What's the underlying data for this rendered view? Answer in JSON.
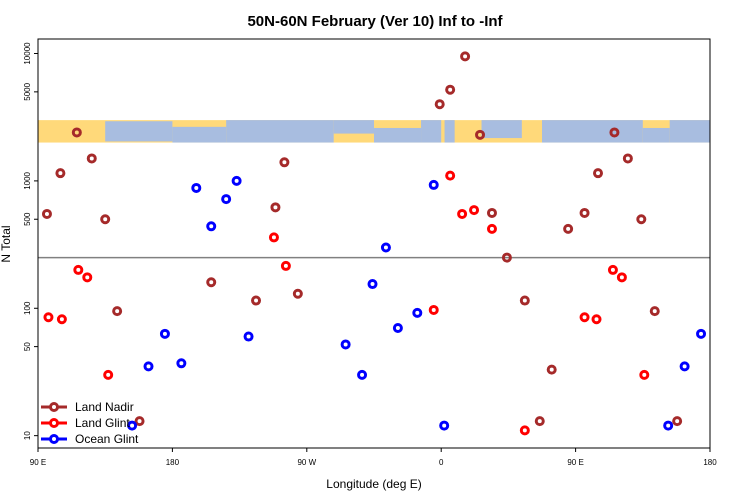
{
  "chart_data": {
    "type": "scatter",
    "title": "50N-60N February (Ver 10)   Inf to -Inf",
    "xlabel": "Longitude (deg E)",
    "ylabel": "N Total",
    "y_scale": "log",
    "xlim": [
      0,
      450
    ],
    "ylim": [
      8,
      13000
    ],
    "x_ticks": [
      {
        "value": 0,
        "label": "90 E"
      },
      {
        "value": 90,
        "label": "180"
      },
      {
        "value": 180,
        "label": "90 W"
      },
      {
        "value": 270,
        "label": "0"
      },
      {
        "value": 360,
        "label": "90 E"
      },
      {
        "value": 450,
        "label": "180"
      }
    ],
    "y_ticks": [
      {
        "value": 10,
        "label": "10"
      },
      {
        "value": 50,
        "label": "50"
      },
      {
        "value": 100,
        "label": "100"
      },
      {
        "value": 500,
        "label": "500"
      },
      {
        "value": 1000,
        "label": "1000"
      },
      {
        "value": 5000,
        "label": "5000"
      },
      {
        "value": 10000,
        "label": "10000"
      }
    ],
    "reference_line": {
      "value": 250
    },
    "map_band": {
      "y_top": 3000,
      "y_bottom": 2000
    },
    "series": [
      {
        "name": "Land Nadir",
        "color": "#a52a2a",
        "points": [
          [
            6,
            550
          ],
          [
            15,
            1150
          ],
          [
            26,
            2400
          ],
          [
            36,
            1500
          ],
          [
            45,
            500
          ],
          [
            53,
            95
          ],
          [
            68,
            13
          ],
          [
            116,
            160
          ],
          [
            146,
            115
          ],
          [
            159,
            620
          ],
          [
            165,
            1400
          ],
          [
            174,
            130
          ],
          [
            269,
            4000
          ],
          [
            276,
            5200
          ],
          [
            286,
            9500
          ],
          [
            296,
            2300
          ],
          [
            304,
            560
          ],
          [
            314,
            250
          ],
          [
            326,
            115
          ],
          [
            336,
            13
          ],
          [
            344,
            33
          ],
          [
            355,
            420
          ],
          [
            366,
            560
          ],
          [
            375,
            1150
          ],
          [
            386,
            2400
          ],
          [
            395,
            1500
          ],
          [
            404,
            500
          ],
          [
            413,
            95
          ],
          [
            428,
            13
          ]
        ]
      },
      {
        "name": "Land Glint",
        "color": "#ff0000",
        "points": [
          [
            7,
            85
          ],
          [
            16,
            82
          ],
          [
            27,
            200
          ],
          [
            33,
            175
          ],
          [
            47,
            30
          ],
          [
            158,
            360
          ],
          [
            166,
            215
          ],
          [
            265,
            97
          ],
          [
            276,
            1100
          ],
          [
            284,
            550
          ],
          [
            292,
            590
          ],
          [
            304,
            420
          ],
          [
            326,
            11
          ],
          [
            366,
            85
          ],
          [
            374,
            82
          ],
          [
            385,
            200
          ],
          [
            391,
            175
          ],
          [
            406,
            30
          ]
        ]
      },
      {
        "name": "Ocean Glint",
        "color": "#0000ff",
        "points": [
          [
            63,
            12
          ],
          [
            74,
            35
          ],
          [
            85,
            63
          ],
          [
            96,
            37
          ],
          [
            106,
            880
          ],
          [
            116,
            440
          ],
          [
            126,
            720
          ],
          [
            133,
            1000
          ],
          [
            141,
            60
          ],
          [
            206,
            52
          ],
          [
            217,
            30
          ],
          [
            224,
            155
          ],
          [
            233,
            300
          ],
          [
            241,
            70
          ],
          [
            254,
            92
          ],
          [
            265,
            930
          ],
          [
            272,
            12
          ],
          [
            422,
            12
          ],
          [
            433,
            35
          ],
          [
            444,
            63
          ]
        ]
      }
    ]
  }
}
